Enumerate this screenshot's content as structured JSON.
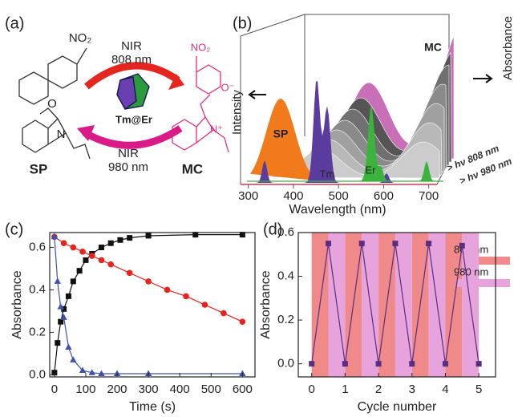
{
  "panel_labels": [
    "(a)",
    "(b)",
    "(c)",
    "(d)"
  ],
  "scheme": {
    "sp_label": "SP",
    "mc_label": "MC",
    "center_label": "Tm@Er",
    "forward": [
      "NIR",
      "808 nm"
    ],
    "backward": [
      "NIR",
      "980 nm"
    ],
    "sp_atoms": [
      "NO₂",
      "O",
      "N"
    ],
    "mc_atoms": [
      "NO₂",
      "O⁻",
      "N⁺"
    ]
  },
  "spectra": {
    "y_left": "Intensity",
    "y_right": "Absorbance",
    "mc": "MC",
    "sp": "SP",
    "tm": "Tm",
    "er": "Er",
    "beam_808": "> hν 808 nm",
    "beam_980": "> hν 980 nm",
    "xlabel": "Wavelength (nm)",
    "xticks": [
      300,
      400,
      500,
      600,
      700
    ],
    "xlim": [
      265,
      745
    ]
  },
  "chart_data": [
    {
      "type": "line",
      "xlabel": "Time (s)",
      "ylabel": "Absorbance",
      "xlim": [
        -15,
        640
      ],
      "ylim": [
        -0.01,
        0.67
      ],
      "xticks": [
        0,
        100,
        200,
        300,
        400,
        500,
        600
      ],
      "yticks": [
        {
          "value": 0,
          "label": "0.0"
        },
        {
          "value": 0.2,
          "label": "0.2"
        },
        {
          "value": 0.4,
          "label": "0.4"
        },
        {
          "value": 0.6,
          "label": "0.6"
        }
      ],
      "series": [
        {
          "color": "#111111",
          "marker": "square",
          "x": [
            0,
            10,
            20,
            30,
            45,
            60,
            80,
            100,
            120,
            150,
            180,
            210,
            240,
            300,
            450,
            600
          ],
          "values": [
            0.01,
            0.15,
            0.25,
            0.31,
            0.37,
            0.44,
            0.49,
            0.54,
            0.57,
            0.6,
            0.62,
            0.635,
            0.645,
            0.655,
            0.66,
            0.66
          ]
        },
        {
          "color": "#e8231d",
          "marker": "circle",
          "x": [
            0,
            30,
            60,
            90,
            120,
            150,
            180,
            240,
            300,
            360,
            420,
            480,
            540,
            600
          ],
          "values": [
            0.65,
            0.62,
            0.6,
            0.58,
            0.56,
            0.54,
            0.52,
            0.48,
            0.44,
            0.4,
            0.37,
            0.33,
            0.29,
            0.25
          ]
        },
        {
          "color": "#3f51a8",
          "marker": "triangle",
          "x": [
            0,
            10,
            20,
            30,
            45,
            60,
            90,
            120,
            150,
            200,
            300,
            600
          ],
          "values": [
            0.65,
            0.44,
            0.32,
            0.27,
            0.13,
            0.07,
            0.02,
            0.01,
            0.005,
            0.005,
            0.005,
            0.005
          ]
        }
      ]
    },
    {
      "type": "line",
      "xlabel": "Cycle number",
      "ylabel": "Absorbance",
      "xlim": [
        -0.4,
        5.5
      ],
      "ylim": [
        -0.06,
        0.6
      ],
      "xticks": [
        0,
        1,
        2,
        3,
        4,
        5
      ],
      "yticks": [
        {
          "value": 0,
          "label": "0.0"
        },
        {
          "value": 0.2,
          "label": "0.2"
        },
        {
          "value": 0.4,
          "label": "0.4"
        },
        {
          "value": 0.6,
          "label": "0.6"
        }
      ],
      "bands": [
        {
          "name": "808 nm",
          "color": "#f08a8a",
          "spans": [
            [
              0,
              0.5
            ],
            [
              1,
              1.5
            ],
            [
              2,
              2.5
            ],
            [
              3,
              3.5
            ],
            [
              4,
              4.5
            ]
          ]
        },
        {
          "name": "980 nm",
          "color": "#e7a3dc",
          "spans": [
            [
              0.5,
              1
            ],
            [
              1.5,
              2
            ],
            [
              2.5,
              3
            ],
            [
              3.5,
              4
            ],
            [
              4.5,
              5
            ]
          ]
        }
      ],
      "series": [
        {
          "color": "#5a2d82",
          "marker": "square",
          "x": [
            0,
            0.5,
            1,
            1.5,
            2,
            2.5,
            3,
            3.5,
            4,
            4.5,
            5
          ],
          "values": [
            0,
            0.55,
            0,
            0.55,
            0,
            0.55,
            0,
            0.55,
            0,
            0.54,
            0
          ]
        }
      ]
    }
  ]
}
